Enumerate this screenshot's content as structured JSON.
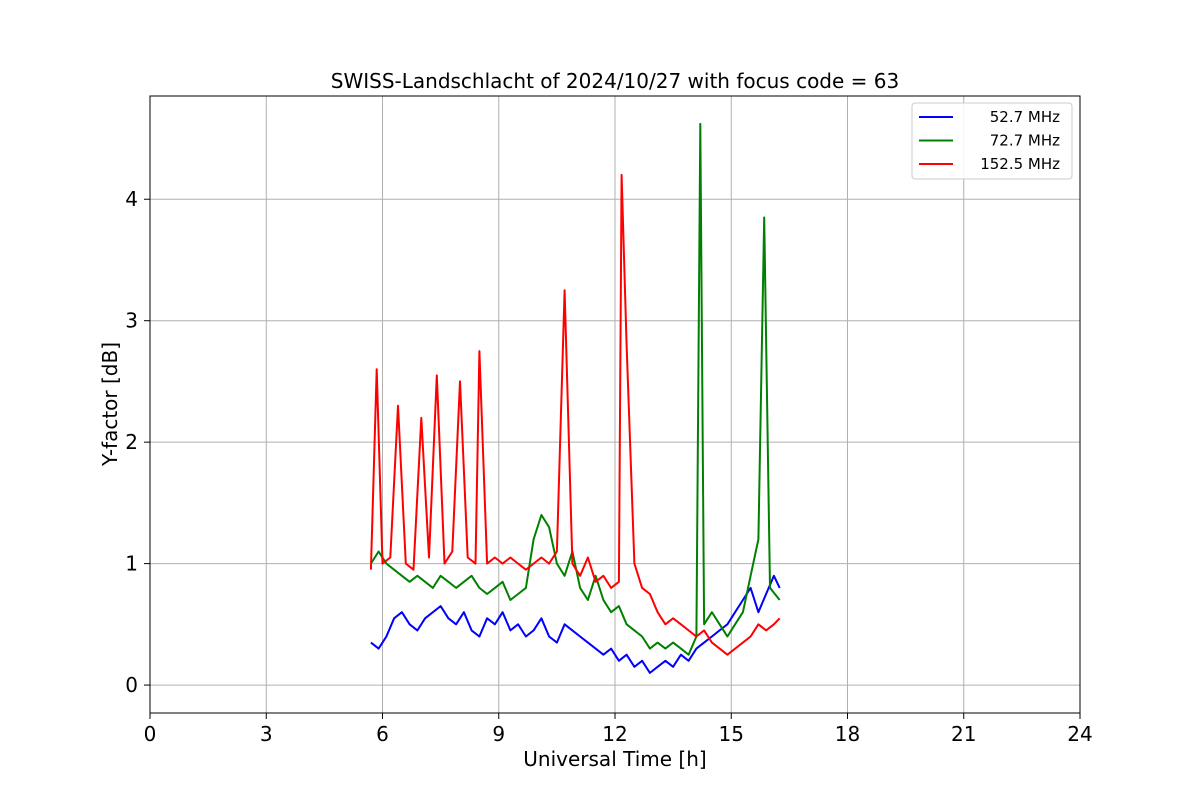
{
  "chart_data": {
    "type": "line",
    "title": "SWISS-Landschlacht of 2024/10/27 with focus code = 63",
    "xlabel": "Universal Time [h]",
    "ylabel": "Y-factor [dB]",
    "xlim": [
      0,
      24
    ],
    "ylim": [
      -0.23,
      4.85
    ],
    "xticks": [
      0,
      3,
      6,
      9,
      12,
      15,
      18,
      21,
      24
    ],
    "yticks": [
      0,
      1,
      2,
      3,
      4
    ],
    "xtick_labels": [
      "0",
      "3",
      "6",
      "9",
      "12",
      "15",
      "18",
      "21",
      "24"
    ],
    "ytick_labels": [
      "0",
      "1",
      "2",
      "3",
      "4"
    ],
    "grid": true,
    "legend_position": "top-right",
    "series": [
      {
        "name": "52.7 MHz",
        "color": "#0000ff",
        "x": [
          5.7,
          5.9,
          6.1,
          6.3,
          6.5,
          6.7,
          6.9,
          7.1,
          7.3,
          7.5,
          7.7,
          7.9,
          8.1,
          8.3,
          8.5,
          8.7,
          8.9,
          9.1,
          9.3,
          9.5,
          9.7,
          9.9,
          10.1,
          10.3,
          10.5,
          10.7,
          10.9,
          11.1,
          11.3,
          11.5,
          11.7,
          11.9,
          12.1,
          12.3,
          12.5,
          12.7,
          12.9,
          13.1,
          13.3,
          13.5,
          13.7,
          13.9,
          14.1,
          14.3,
          14.5,
          14.7,
          14.9,
          15.1,
          15.3,
          15.5,
          15.7,
          15.9,
          16.1,
          16.25
        ],
        "y": [
          0.35,
          0.3,
          0.4,
          0.55,
          0.6,
          0.5,
          0.45,
          0.55,
          0.6,
          0.65,
          0.55,
          0.5,
          0.6,
          0.45,
          0.4,
          0.55,
          0.5,
          0.6,
          0.45,
          0.5,
          0.4,
          0.45,
          0.55,
          0.4,
          0.35,
          0.5,
          0.45,
          0.4,
          0.35,
          0.3,
          0.25,
          0.3,
          0.2,
          0.25,
          0.15,
          0.2,
          0.1,
          0.15,
          0.2,
          0.15,
          0.25,
          0.2,
          0.3,
          0.35,
          0.4,
          0.45,
          0.5,
          0.6,
          0.7,
          0.8,
          0.6,
          0.75,
          0.9,
          0.8
        ]
      },
      {
        "name": "72.7 MHz",
        "color": "#008000",
        "x": [
          5.7,
          5.9,
          6.1,
          6.3,
          6.5,
          6.7,
          6.9,
          7.1,
          7.3,
          7.5,
          7.7,
          7.9,
          8.1,
          8.3,
          8.5,
          8.7,
          8.9,
          9.1,
          9.3,
          9.5,
          9.7,
          9.9,
          10.1,
          10.3,
          10.5,
          10.7,
          10.9,
          11.1,
          11.3,
          11.5,
          11.7,
          11.9,
          12.1,
          12.3,
          12.5,
          12.7,
          12.9,
          13.1,
          13.3,
          13.5,
          13.7,
          13.9,
          14.1,
          14.2,
          14.3,
          14.5,
          14.7,
          14.9,
          15.1,
          15.3,
          15.5,
          15.7,
          15.85,
          16.0,
          16.25
        ],
        "y": [
          1.0,
          1.1,
          1.0,
          0.95,
          0.9,
          0.85,
          0.9,
          0.85,
          0.8,
          0.9,
          0.85,
          0.8,
          0.85,
          0.9,
          0.8,
          0.75,
          0.8,
          0.85,
          0.7,
          0.75,
          0.8,
          1.2,
          1.4,
          1.3,
          1.0,
          0.9,
          1.1,
          0.8,
          0.7,
          0.9,
          0.7,
          0.6,
          0.65,
          0.5,
          0.45,
          0.4,
          0.3,
          0.35,
          0.3,
          0.35,
          0.3,
          0.25,
          0.4,
          4.62,
          0.5,
          0.6,
          0.5,
          0.4,
          0.5,
          0.6,
          0.9,
          1.2,
          3.85,
          0.8,
          0.7
        ]
      },
      {
        "name": "152.5 MHz",
        "color": "#ff0000",
        "x": [
          5.7,
          5.85,
          6.0,
          6.2,
          6.4,
          6.6,
          6.8,
          7.0,
          7.2,
          7.4,
          7.6,
          7.8,
          8.0,
          8.2,
          8.4,
          8.5,
          8.7,
          8.9,
          9.1,
          9.3,
          9.5,
          9.7,
          9.9,
          10.1,
          10.3,
          10.5,
          10.7,
          10.9,
          11.1,
          11.3,
          11.5,
          11.7,
          11.9,
          12.1,
          12.17,
          12.3,
          12.5,
          12.7,
          12.9,
          13.1,
          13.3,
          13.5,
          13.7,
          13.9,
          14.1,
          14.3,
          14.5,
          14.7,
          14.9,
          15.1,
          15.3,
          15.5,
          15.7,
          15.9,
          16.1,
          16.25
        ],
        "y": [
          0.95,
          2.6,
          1.0,
          1.05,
          2.3,
          1.0,
          0.95,
          2.2,
          1.05,
          2.55,
          1.0,
          1.1,
          2.5,
          1.05,
          1.0,
          2.75,
          1.0,
          1.05,
          1.0,
          1.05,
          1.0,
          0.95,
          1.0,
          1.05,
          1.0,
          1.1,
          3.25,
          1.0,
          0.9,
          1.05,
          0.85,
          0.9,
          0.8,
          0.85,
          4.2,
          2.8,
          1.0,
          0.8,
          0.75,
          0.6,
          0.5,
          0.55,
          0.5,
          0.45,
          0.4,
          0.45,
          0.35,
          0.3,
          0.25,
          0.3,
          0.35,
          0.4,
          0.5,
          0.45,
          0.5,
          0.55
        ]
      }
    ]
  }
}
